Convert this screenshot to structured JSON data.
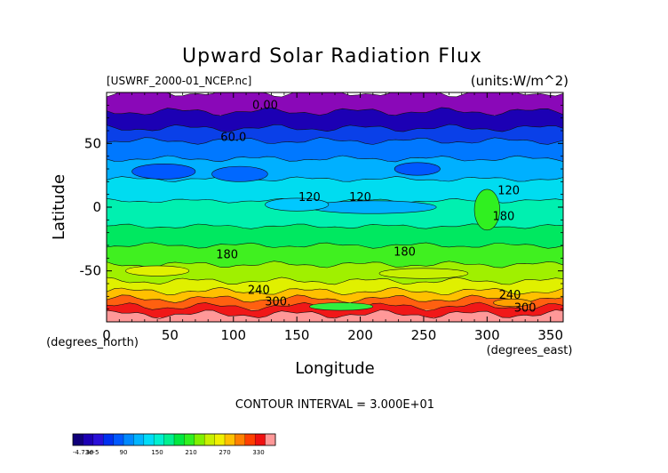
{
  "chart_data": {
    "type": "heatmap",
    "title": "Upward Solar Radiation Flux",
    "source_label": "[USWRF_2000-01_NCEP.nc]",
    "units_label": "(units:W/m^2)",
    "xlabel": "Longitude",
    "ylabel": "Latitude",
    "x_unit_label": "(degrees_east)",
    "y_unit_label": "(degrees_north)",
    "xlim": [
      0,
      360
    ],
    "ylim": [
      -90,
      90
    ],
    "x_ticks": [
      0,
      50,
      100,
      150,
      200,
      250,
      300,
      350
    ],
    "y_ticks": [
      -50,
      0,
      50
    ],
    "contour_interval_text": "CONTOUR INTERVAL = 3.000E+01",
    "contour_labels": [
      {
        "text": "0.00",
        "x": 125,
        "y": 77
      },
      {
        "text": "60.0",
        "x": 100,
        "y": 52
      },
      {
        "text": "120",
        "x": 160,
        "y": 5
      },
      {
        "text": "120",
        "x": 200,
        "y": 5
      },
      {
        "text": "120",
        "x": 317,
        "y": 10
      },
      {
        "text": "180",
        "x": 313,
        "y": -10
      },
      {
        "text": "180",
        "x": 95,
        "y": -40
      },
      {
        "text": "180",
        "x": 235,
        "y": -38
      },
      {
        "text": "240",
        "x": 120,
        "y": -68
      },
      {
        "text": "240",
        "x": 318,
        "y": -72
      },
      {
        "text": "300.",
        "x": 135,
        "y": -77
      },
      {
        "text": "300",
        "x": 330,
        "y": -82
      }
    ],
    "colorbar": {
      "tick_labels": [
        "-4.73e-5",
        "30",
        "90",
        "150",
        "210",
        "270",
        "330"
      ],
      "tick_values": [
        0,
        30,
        90,
        150,
        210,
        270,
        330
      ],
      "levels_min": 0,
      "levels_max": 360,
      "colors": [
        "#10007a",
        "#1c00b4",
        "#2a10d8",
        "#0030f0",
        "#0058ff",
        "#0088ff",
        "#00b4ff",
        "#00dcf8",
        "#00f0d0",
        "#00f090",
        "#00e840",
        "#30f020",
        "#80f000",
        "#c8f000",
        "#f0f000",
        "#ffc000",
        "#ff8000",
        "#ff4000",
        "#f01010",
        "#ff9898"
      ]
    },
    "bands": [
      {
        "lat_min": 75,
        "lat_max": 90,
        "value": 0,
        "color": "#8a08b8"
      },
      {
        "lat_min": 62,
        "lat_max": 75,
        "value": 30,
        "color": "#1c00b4"
      },
      {
        "lat_min": 52,
        "lat_max": 62,
        "value": 60,
        "color": "#0a40e8"
      },
      {
        "lat_min": 38,
        "lat_max": 52,
        "value": 90,
        "color": "#0078ff"
      },
      {
        "lat_min": 22,
        "lat_max": 38,
        "value": 105,
        "color": "#00b0ff"
      },
      {
        "lat_min": 5,
        "lat_max": 22,
        "value": 120,
        "color": "#00dcf0"
      },
      {
        "lat_min": -15,
        "lat_max": 5,
        "value": 135,
        "color": "#00f0b0"
      },
      {
        "lat_min": -30,
        "lat_max": -15,
        "value": 150,
        "color": "#00e860"
      },
      {
        "lat_min": -45,
        "lat_max": -30,
        "value": 165,
        "color": "#40f020"
      },
      {
        "lat_min": -58,
        "lat_max": -45,
        "value": 180,
        "color": "#a0f000"
      },
      {
        "lat_min": -66,
        "lat_max": -58,
        "value": 210,
        "color": "#e0f000"
      },
      {
        "lat_min": -72,
        "lat_max": -66,
        "value": 240,
        "color": "#ffc000"
      },
      {
        "lat_min": -78,
        "lat_max": -72,
        "value": 270,
        "color": "#ff6010"
      },
      {
        "lat_min": -84,
        "lat_max": -78,
        "value": 300,
        "color": "#f01818"
      },
      {
        "lat_min": -90,
        "lat_max": -84,
        "value": 330,
        "color": "#ff9898"
      }
    ],
    "patches": [
      {
        "lon": 45,
        "lat": 28,
        "rlon": 25,
        "rlat": 6,
        "color": "#0058ff"
      },
      {
        "lon": 105,
        "lat": 26,
        "rlon": 22,
        "rlat": 6,
        "color": "#0068ff"
      },
      {
        "lon": 245,
        "lat": 30,
        "rlon": 18,
        "rlat": 5,
        "color": "#0058ff"
      },
      {
        "lon": 210,
        "lat": 0,
        "rlon": 50,
        "rlat": 5,
        "color": "#00b0ff"
      },
      {
        "lon": 150,
        "lat": 2,
        "rlon": 25,
        "rlat": 5,
        "color": "#00c8ff"
      },
      {
        "lon": 300,
        "lat": -2,
        "rlon": 10,
        "rlat": 16,
        "color": "#30f020"
      },
      {
        "lon": 40,
        "lat": -50,
        "rlon": 25,
        "rlat": 4,
        "color": "#e0f000"
      },
      {
        "lon": 250,
        "lat": -52,
        "rlon": 35,
        "rlat": 4,
        "color": "#c8f000"
      },
      {
        "lon": 185,
        "lat": -78,
        "rlon": 25,
        "rlat": 3,
        "color": "#30f040"
      },
      {
        "lon": 320,
        "lat": -75,
        "rlon": 15,
        "rlat": 3,
        "color": "#ffa000"
      }
    ]
  }
}
